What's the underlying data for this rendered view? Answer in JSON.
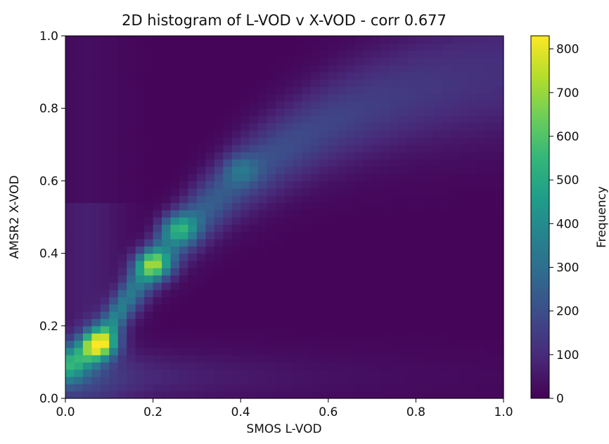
{
  "chart_data": {
    "type": "heatmap",
    "title": "2D histogram of L-VOD v X-VOD - corr 0.677",
    "xlabel": "SMOS L-VOD",
    "ylabel": "AMSR2 X-VOD",
    "xlim": [
      0.0,
      1.0
    ],
    "ylim": [
      0.0,
      1.0
    ],
    "x_ticks": [
      "0.0",
      "0.2",
      "0.4",
      "0.6",
      "0.8",
      "1.0"
    ],
    "y_ticks": [
      "0.0",
      "0.2",
      "0.4",
      "0.6",
      "0.8",
      "1.0"
    ],
    "colorbar": {
      "label": "Frequency",
      "range": [
        0,
        830
      ],
      "ticks": [
        0,
        100,
        200,
        300,
        400,
        500,
        600,
        700,
        800
      ],
      "tick_labels": [
        "0",
        "100",
        "200",
        "300",
        "400",
        "500",
        "600",
        "700",
        "800"
      ],
      "colormap": "viridis"
    },
    "bins": 50,
    "grid": false,
    "hotspots": [
      {
        "x": 0.08,
        "y": 0.15,
        "frequency": 820
      },
      {
        "x": 0.2,
        "y": 0.37,
        "frequency": 760
      },
      {
        "x": 0.26,
        "y": 0.47,
        "frequency": 620
      },
      {
        "x": 0.4,
        "y": 0.63,
        "frequency": 450
      }
    ],
    "ridge": [
      {
        "x": 0.02,
        "y": 0.1
      },
      {
        "x": 0.08,
        "y": 0.16
      },
      {
        "x": 0.15,
        "y": 0.29
      },
      {
        "x": 0.22,
        "y": 0.4
      },
      {
        "x": 0.3,
        "y": 0.5
      },
      {
        "x": 0.4,
        "y": 0.61
      },
      {
        "x": 0.5,
        "y": 0.69
      },
      {
        "x": 0.6,
        "y": 0.76
      },
      {
        "x": 0.7,
        "y": 0.81
      },
      {
        "x": 0.8,
        "y": 0.85
      },
      {
        "x": 0.9,
        "y": 0.88
      },
      {
        "x": 1.0,
        "y": 0.9
      }
    ],
    "viridis_stops": [
      "#440154",
      "#482878",
      "#3e4989",
      "#31688e",
      "#26828e",
      "#1f9e89",
      "#35b779",
      "#6ece58",
      "#b5de2b",
      "#fde725"
    ]
  }
}
